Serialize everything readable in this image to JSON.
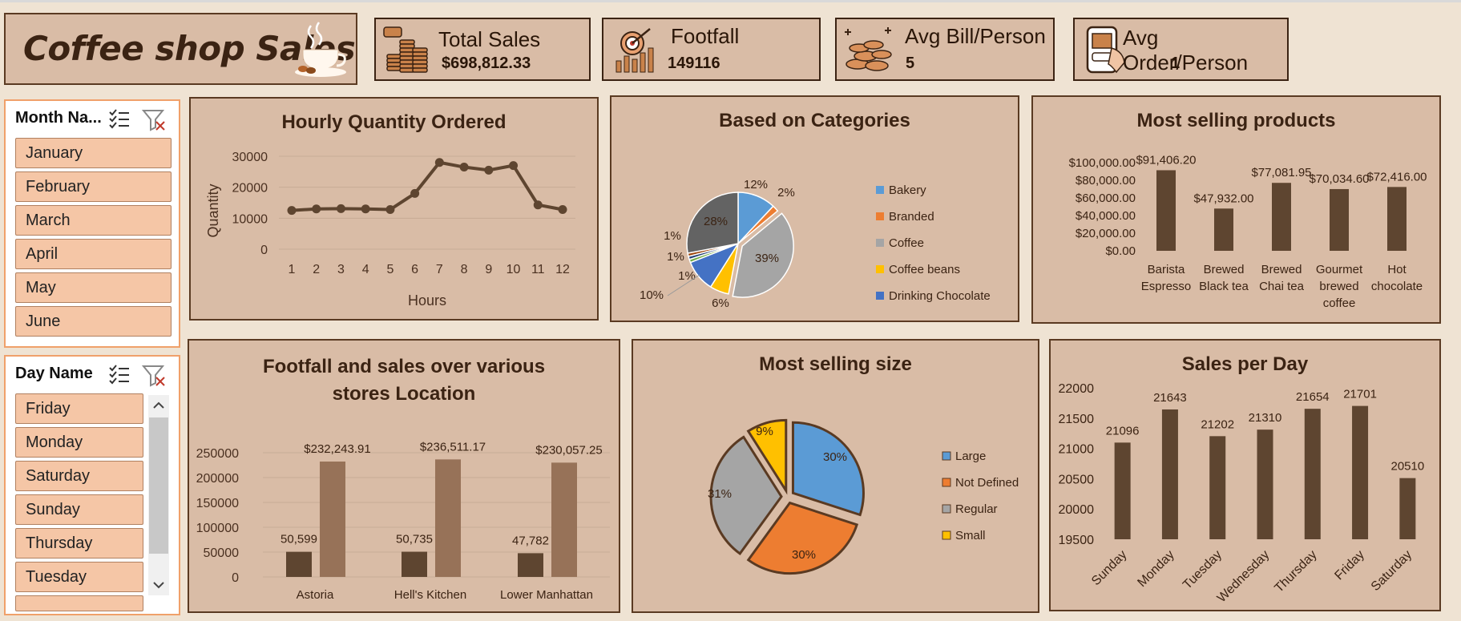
{
  "dashboard": {
    "title": "Coffee shop Sales"
  },
  "kpis": [
    {
      "label": "Total Sales",
      "value": "$698,812.33",
      "icon": "coin-stack-icon"
    },
    {
      "label": "Footfall",
      "value": "149116",
      "icon": "target-growth-icon"
    },
    {
      "label": "Avg Bill/Person",
      "value": "5",
      "icon": "coins-pile-icon"
    },
    {
      "label": "Avg Order/Person",
      "value": "1",
      "icon": "phone-order-icon"
    }
  ],
  "slicers": {
    "month": {
      "header": "Month Na...",
      "items": [
        "January",
        "February",
        "March",
        "April",
        "May",
        "June"
      ]
    },
    "day": {
      "header": "Day Name",
      "items": [
        "Friday",
        "Monday",
        "Saturday",
        "Sunday",
        "Thursday",
        "Tuesday"
      ]
    }
  },
  "chart_data": [
    {
      "type": "line",
      "title": "Hourly Quantity Ordered",
      "xlabel": "Hours",
      "ylabel": "Quantity",
      "x": [
        1,
        2,
        3,
        4,
        5,
        6,
        7,
        8,
        9,
        10,
        11,
        12
      ],
      "values": [
        12500,
        13000,
        13100,
        13000,
        12800,
        18000,
        28000,
        26500,
        25500,
        27000,
        14300,
        12800
      ],
      "ylim": [
        0,
        30000
      ],
      "yticks": [
        0,
        10000,
        20000,
        30000
      ],
      "color": "#5e4530"
    },
    {
      "type": "pie",
      "title": "Based on Categories",
      "legend": [
        "Bakery",
        "Branded",
        "Coffee",
        "Coffee beans",
        "Drinking Chocolate"
      ],
      "slices": [
        {
          "name": "Bakery",
          "value": 12,
          "label": "12%",
          "color": "#5b9bd5"
        },
        {
          "name": "Branded",
          "value": 2,
          "label": "2%",
          "color": "#ed7d31"
        },
        {
          "name": "Coffee",
          "value": 39,
          "label": "39%",
          "color": "#a5a5a5"
        },
        {
          "name": "Coffee beans",
          "value": 6,
          "label": "6%",
          "color": "#ffc000"
        },
        {
          "name": "Drinking Chocolate",
          "value": 10,
          "label": "10%",
          "color": "#4472c4"
        },
        {
          "name": "",
          "value": 1,
          "label": "1%",
          "color": "#70ad47"
        },
        {
          "name": "",
          "value": 1,
          "label": "1%",
          "color": "#264478"
        },
        {
          "name": "",
          "value": 1,
          "label": "1%",
          "color": "#9e480e"
        },
        {
          "name": "",
          "value": 28,
          "label": "28%",
          "color": "#636363"
        }
      ]
    },
    {
      "type": "bar",
      "title": "Most selling products",
      "categories": [
        "Barista Espresso",
        "Brewed Black tea",
        "Brewed Chai tea",
        "Gourmet brewed coffee",
        "Hot chocolate"
      ],
      "category_lines": [
        [
          "Barista",
          "Espresso"
        ],
        [
          "Brewed",
          "Black tea"
        ],
        [
          "Brewed",
          "Chai tea"
        ],
        [
          "Gourmet",
          "brewed",
          "coffee"
        ],
        [
          "Hot",
          "chocolate"
        ]
      ],
      "values": [
        91406.2,
        47932.0,
        77081.95,
        70034.6,
        72416.0
      ],
      "data_labels": [
        "$91,406.20",
        "$47,932.00",
        "$77,081.95",
        "$70,034.60",
        "$72,416.00"
      ],
      "ylim": [
        0,
        100000
      ],
      "yticks": [
        "$0.00",
        "$20,000.00",
        "$40,000.00",
        "$60,000.00",
        "$80,000.00",
        "$100,000.00"
      ],
      "color": "#5e4530"
    },
    {
      "type": "bar",
      "title": "Footfall and sales over various stores Location",
      "title_lines": [
        "Footfall and sales over various",
        "stores Location"
      ],
      "categories": [
        "Astoria",
        "Hell's Kitchen",
        "Lower Manhattan"
      ],
      "series": [
        {
          "values": [
            50599,
            50735,
            47782
          ],
          "labels": [
            "50,599",
            "50,735",
            "47,782"
          ],
          "color": "#5e4530"
        },
        {
          "values": [
            232243.91,
            236511.17,
            230057.25
          ],
          "labels": [
            "$232,243.91",
            "$236,511.17",
            "$230,057.25"
          ],
          "color": "#977258"
        }
      ],
      "ylim": [
        0,
        250000
      ],
      "yticks": [
        0,
        50000,
        100000,
        150000,
        200000,
        250000
      ]
    },
    {
      "type": "pie",
      "title": "Most selling size",
      "legend": [
        "Large",
        "Not Defined",
        "Regular",
        "Small"
      ],
      "slices": [
        {
          "name": "Large",
          "value": 30,
          "label": "30%",
          "color": "#5b9bd5"
        },
        {
          "name": "Not Defined",
          "value": 30,
          "label": "30%",
          "color": "#ed7d31"
        },
        {
          "name": "Regular",
          "value": 31,
          "label": "31%",
          "color": "#a5a5a5"
        },
        {
          "name": "Small",
          "value": 9,
          "label": "9%",
          "color": "#ffc000"
        }
      ]
    },
    {
      "type": "bar",
      "title": "Sales per Day",
      "categories": [
        "Sunday",
        "Monday",
        "Tuesday",
        "Wednesday",
        "Thursday",
        "Friday",
        "Saturday"
      ],
      "values": [
        21096,
        21643,
        21202,
        21310,
        21654,
        21701,
        20510
      ],
      "data_labels": [
        "21096",
        "21643",
        "21202",
        "21310",
        "21654",
        "21701",
        "20510"
      ],
      "ylim": [
        19500,
        22000
      ],
      "yticks": [
        19500,
        20000,
        20500,
        21000,
        21500,
        22000
      ],
      "color": "#5e4530"
    }
  ]
}
